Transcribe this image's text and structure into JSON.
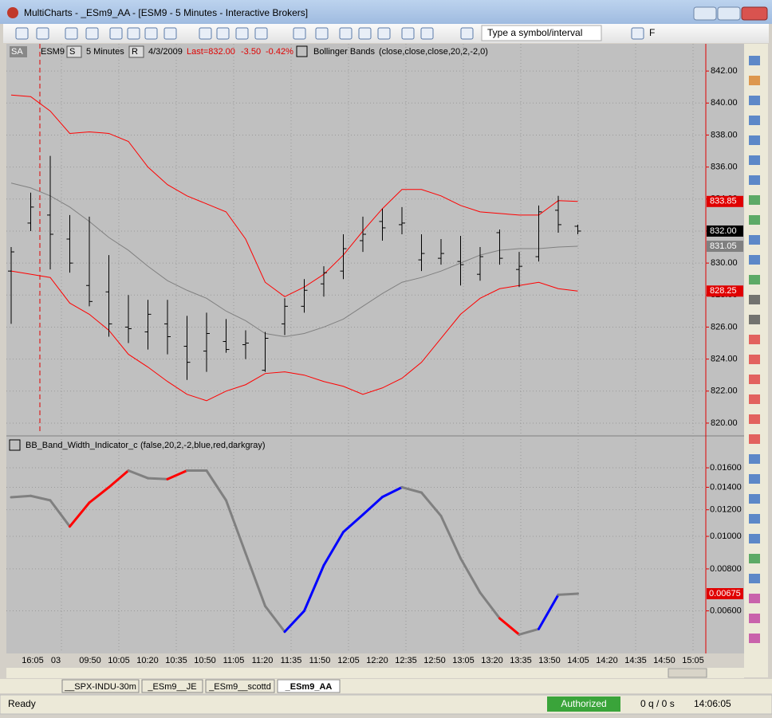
{
  "window": {
    "title": "MultiCharts - _ESm9_AA - [ESM9 - 5 Minutes - Interactive Brokers]"
  },
  "toolbar": {
    "symbol_box": "Type a symbol/interval",
    "f_button": "F"
  },
  "chart_header": {
    "workspace": "SA",
    "symbol": "ESM9",
    "s_button": "S",
    "interval": "5 Minutes",
    "r_button": "R",
    "date": "4/3/2009",
    "last": "Last=832.00",
    "change": "-3.50",
    "change_pct": "-0.42%",
    "study": "Bollinger Bands",
    "study_params": "(close,close,close,20,2,-2,0)"
  },
  "price_chart": {
    "type": "ohlc",
    "open": [
      829.5,
      832.5,
      833.0,
      831.5,
      828.6,
      828.2,
      826.0,
      825.7,
      826.2,
      824.8,
      824.5,
      825.1,
      824.9,
      823.3,
      826.2,
      827.3,
      828.7,
      829.5,
      831.4,
      832.6,
      832.4,
      830.2,
      830.3,
      830.1,
      829.3,
      831.9,
      829.6,
      830.4,
      833.3,
      832.3
    ],
    "high": [
      831.0,
      834.4,
      836.7,
      833.0,
      832.9,
      830.5,
      828.0,
      827.7,
      827.7,
      826.7,
      826.9,
      826.5,
      825.8,
      825.7,
      827.8,
      829.0,
      829.8,
      831.8,
      832.9,
      833.4,
      833.5,
      831.8,
      831.5,
      831.7,
      831.0,
      832.1,
      830.7,
      833.6,
      834.2,
      832.4
    ],
    "low": [
      826.2,
      832.0,
      829.6,
      829.4,
      827.3,
      825.4,
      825.0,
      824.6,
      824.3,
      822.7,
      823.2,
      824.4,
      824.0,
      823.2,
      825.5,
      826.9,
      827.9,
      829.0,
      830.7,
      831.4,
      831.8,
      829.5,
      829.9,
      828.6,
      828.9,
      829.9,
      828.5,
      830.1,
      831.9,
      831.8
    ],
    "close": [
      830.7,
      833.5,
      831.8,
      830.0,
      827.6,
      826.2,
      825.9,
      826.8,
      825.4,
      823.8,
      825.6,
      824.6,
      825.0,
      825.3,
      827.3,
      828.3,
      829.4,
      830.9,
      831.8,
      832.2,
      832.5,
      830.6,
      830.6,
      829.9,
      830.4,
      830.3,
      829.8,
      833.2,
      832.4,
      832.0
    ],
    "bar_color": "#000000",
    "upper_band": {
      "color": "#ff0000",
      "values": [
        840.5,
        840.4,
        839.5,
        838.1,
        838.2,
        838.1,
        837.6,
        836.0,
        834.9,
        834.2,
        833.7,
        833.2,
        831.5,
        828.8,
        827.9,
        828.5,
        829.3,
        830.5,
        832.0,
        833.4,
        834.6,
        834.6,
        834.2,
        833.6,
        833.2,
        833.1,
        833.0,
        833.0,
        833.9,
        833.85
      ]
    },
    "lower_band": {
      "color": "#ff0000",
      "values": [
        829.5,
        829.3,
        829.1,
        827.5,
        826.8,
        825.8,
        824.3,
        823.5,
        822.6,
        821.8,
        821.4,
        822.0,
        822.4,
        823.1,
        823.2,
        823.0,
        822.6,
        822.3,
        821.8,
        822.2,
        822.8,
        823.8,
        825.3,
        826.8,
        827.8,
        828.4,
        828.6,
        828.8,
        828.4,
        828.25
      ]
    },
    "mid_band": {
      "color": "#808080",
      "values": [
        835.0,
        834.7,
        834.2,
        833.5,
        832.6,
        831.6,
        830.8,
        829.8,
        828.9,
        828.3,
        827.8,
        827.0,
        826.4,
        825.6,
        825.4,
        825.6,
        826.0,
        826.5,
        827.3,
        828.1,
        828.8,
        829.1,
        829.5,
        830.0,
        830.5,
        830.8,
        830.9,
        830.9,
        831.0,
        831.05
      ]
    },
    "ylim": [
      819.3,
      843.7
    ],
    "yticks": [
      {
        "value": 820,
        "label": "820.00"
      },
      {
        "value": 822,
        "label": "822.00"
      },
      {
        "value": 824,
        "label": "824.00"
      },
      {
        "value": 826,
        "label": "826.00"
      },
      {
        "value": 828,
        "label": "828.00"
      },
      {
        "value": 830,
        "label": "830.00"
      },
      {
        "value": 832,
        "label": "832.00"
      },
      {
        "value": 834,
        "label": "834.00"
      },
      {
        "value": 836,
        "label": "836.00"
      },
      {
        "value": 838,
        "label": "838.00"
      },
      {
        "value": 840,
        "label": "840.00"
      },
      {
        "value": 842,
        "label": "842.00"
      }
    ],
    "grid": true,
    "markers": [
      {
        "value": 833.85,
        "color": "#e00000"
      },
      {
        "value": 832,
        "label": "832.00",
        "color": "#000000"
      },
      {
        "value": 831.05,
        "color": "#808080"
      },
      {
        "value": 828.25,
        "color": "#e00000"
      }
    ]
  },
  "indicator": {
    "type": "line",
    "title": "BB_Band_Width_Indicator_c",
    "params": "(false,20,2,-2,blue,red,darkgray)",
    "values": [
      0.01307,
      0.0132,
      0.0128,
      0.0107,
      0.0126,
      0.014,
      0.0157,
      0.0149,
      0.0148,
      0.0157,
      0.0157,
      0.0128,
      0.0089,
      0.0062,
      0.0052,
      0.006,
      0.0082,
      0.0103,
      0.0116,
      0.0131,
      0.014,
      0.0135,
      0.0115,
      0.0086,
      0.0068,
      0.0057,
      0.0051,
      0.0053,
      0.0067,
      0.00675
    ],
    "colors": [
      "#808080",
      "#808080",
      "#808080",
      "#808080",
      "#ff0000",
      "#ff0000",
      "#ff0000",
      "#808080",
      "#808080",
      "#ff0000",
      "#808080",
      "#808080",
      "#808080",
      "#808080",
      "#808080",
      "#0000ff",
      "#0000ff",
      "#0000ff",
      "#0000ff",
      "#0000ff",
      "#0000ff",
      "#808080",
      "#808080",
      "#808080",
      "#808080",
      "#808080",
      "#ff0000",
      "#808080",
      "#0000ff",
      "#808080"
    ],
    "log_scale": true,
    "ylim": [
      0.00453,
      0.01756
    ],
    "yticks": [
      {
        "value": 0.006,
        "label": "0.00600"
      },
      {
        "value": 0.008,
        "label": "0.00800"
      },
      {
        "value": 0.01,
        "label": "0.01000"
      },
      {
        "value": 0.012,
        "label": "0.01200"
      },
      {
        "value": 0.014,
        "label": "0.01400"
      },
      {
        "value": 0.016,
        "label": "0.01600"
      }
    ],
    "grid": true,
    "marker": {
      "value": 0.00675,
      "color": "#e00000"
    }
  },
  "time_axis": {
    "labels": [
      "16:05",
      "03",
      "09:50",
      "10:05",
      "10:20",
      "10:35",
      "10:50",
      "11:05",
      "11:20",
      "11:35",
      "11:50",
      "12:05",
      "12:20",
      "12:35",
      "12:50",
      "13:05",
      "13:20",
      "13:35",
      "13:50",
      "14:05",
      "14:20",
      "14:35",
      "14:50",
      "15:05"
    ]
  },
  "tabs": [
    "__SPX-INDU-30m",
    "_ESm9__JE",
    "_ESm9__scottd",
    "_ESm9_AA"
  ],
  "status": {
    "ready": "Ready",
    "auth": "Authorized",
    "quotes": "0 q / 0 s",
    "clock": "14:06:05"
  }
}
